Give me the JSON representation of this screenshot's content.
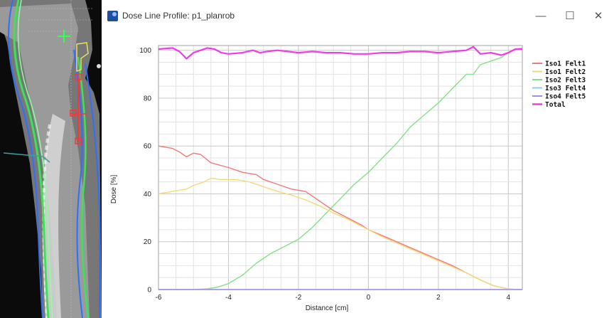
{
  "window": {
    "title": "Dose Line Profile: p1_planrob",
    "minimize_glyph": "—",
    "maximize_glyph": "☐",
    "close_glyph": "✕"
  },
  "side_panel": {
    "content": "CT sagittal view with dose isolines and a red profile line"
  },
  "colors": {
    "Iso1 Felt1": "#f07a7a",
    "Iso1 Felt2": "#f5d978",
    "Iso2 Felt3": "#86e08a",
    "Iso3 Felt4": "#8fd0e6",
    "Iso4 Felt5": "#a58be6",
    "Total": "#f03be6"
  },
  "chart_data": {
    "type": "line",
    "title": "",
    "xlabel": "Distance [cm]",
    "ylabel": "Dose [%]",
    "xlim": [
      -6,
      4.4
    ],
    "ylim": [
      0,
      102
    ],
    "x_ticks": [
      "-6",
      "-4",
      "-2",
      "0",
      "2",
      "4"
    ],
    "y_ticks": [
      "0",
      "20",
      "40",
      "60",
      "80",
      "100"
    ],
    "grid": true,
    "legend_position": "right",
    "series": [
      {
        "name": "Iso1 Felt1",
        "x": [
          -6,
          -5.6,
          -5.4,
          -5.2,
          -5.0,
          -4.8,
          -4.5,
          -4.0,
          -3.6,
          -3.2,
          -3.0,
          -2.6,
          -2.2,
          -1.8,
          -1.4,
          -1.0,
          -0.6,
          -0.2,
          0,
          0.4,
          0.8,
          1.2,
          1.6,
          2.0,
          2.4,
          2.8,
          3.2,
          3.6,
          4.0,
          4.2,
          4.4
        ],
        "y": [
          60,
          59,
          57.5,
          55.5,
          57,
          56.5,
          53,
          51,
          49,
          48,
          46,
          44,
          42,
          41,
          37,
          33,
          30,
          27,
          25,
          22.5,
          20,
          17.5,
          15,
          12.5,
          10,
          7,
          4,
          1.5,
          0.3,
          0,
          0
        ]
      },
      {
        "name": "Iso1 Felt2",
        "x": [
          -6,
          -5.6,
          -5.2,
          -5.0,
          -4.7,
          -4.5,
          -4.2,
          -3.8,
          -3.4,
          -3.0,
          -2.6,
          -2.2,
          -1.8,
          -1.4,
          -1.0,
          -0.6,
          -0.2,
          0,
          0.4,
          0.8,
          1.2,
          1.6,
          2.0,
          2.4,
          2.8,
          3.2,
          3.6,
          4.0,
          4.2,
          4.4
        ],
        "y": [
          40,
          41,
          42,
          43.5,
          45,
          46.5,
          46,
          46,
          45,
          43,
          41,
          39.5,
          37.5,
          35,
          32,
          29.5,
          26.5,
          25,
          22,
          19.5,
          17,
          14.5,
          12,
          9.5,
          7,
          4,
          1.5,
          0.3,
          0,
          0
        ]
      },
      {
        "name": "Iso2 Felt3",
        "x": [
          -6,
          -5.5,
          -5.0,
          -4.6,
          -4.3,
          -4.0,
          -3.6,
          -3.2,
          -2.8,
          -2.4,
          -2.0,
          -1.6,
          -1.2,
          -0.8,
          -0.4,
          0,
          0.4,
          0.8,
          1.2,
          1.6,
          2.0,
          2.4,
          2.8,
          3.0,
          3.2,
          3.6,
          3.8,
          4.0,
          4.2,
          4.4
        ],
        "y": [
          0,
          0,
          0,
          0.3,
          1,
          2.5,
          6,
          11,
          15,
          18,
          21,
          26,
          32,
          38,
          44,
          49,
          55,
          61,
          68,
          73,
          78,
          84,
          90,
          90,
          94,
          96,
          97,
          99,
          100.5,
          101
        ]
      },
      {
        "name": "Iso3 Felt4",
        "x": [
          -6,
          4.4
        ],
        "y": [
          0,
          0
        ]
      },
      {
        "name": "Iso4 Felt5",
        "x": [
          -6,
          4.4
        ],
        "y": [
          0,
          0
        ]
      },
      {
        "name": "Total",
        "x": [
          -6,
          -5.6,
          -5.4,
          -5.2,
          -5.0,
          -4.8,
          -4.6,
          -4.4,
          -4.2,
          -4.0,
          -3.6,
          -3.3,
          -3.1,
          -2.9,
          -2.6,
          -2.3,
          -2.0,
          -1.6,
          -1.2,
          -0.8,
          -0.4,
          0,
          0.4,
          0.8,
          1.2,
          1.6,
          2.0,
          2.4,
          2.8,
          3.0,
          3.2,
          3.5,
          3.8,
          4.0,
          4.2,
          4.4
        ],
        "y": [
          100.5,
          101,
          99.5,
          96.5,
          99,
          100,
          101,
          100.5,
          99,
          98.5,
          99,
          100,
          99,
          99.5,
          100,
          99.5,
          99,
          99.5,
          99,
          99,
          98.5,
          98.5,
          99,
          99,
          99.5,
          99.5,
          99,
          99.5,
          100,
          101.5,
          98.5,
          99,
          98,
          99,
          100.5,
          100.5
        ]
      }
    ]
  }
}
